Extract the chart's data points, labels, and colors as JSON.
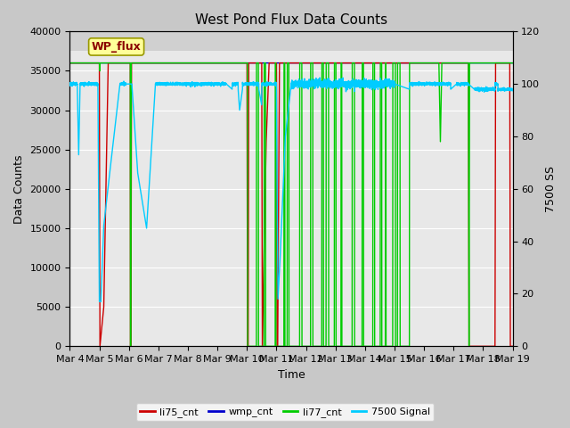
{
  "title": "West Pond Flux Data Counts",
  "xlabel": "Time",
  "ylabel_left": "Data Counts",
  "ylabel_right": "7500 SS",
  "ylim_left": [
    0,
    40000
  ],
  "ylim_right": [
    0,
    120
  ],
  "watermark_text": "WP_flux",
  "watermark_color": "#8B0000",
  "watermark_bg": "#FFFF99",
  "watermark_border": "#999900",
  "fig_facecolor": "#c8c8c8",
  "plot_bg_upper": "#dcdcdc",
  "plot_bg_lower": "#e8e8e8",
  "series_li75_color": "#cc0000",
  "series_wmp_color": "#0000cc",
  "series_li77_color": "#00cc00",
  "series_7500_color": "#00ccff",
  "series_lw": 1.0,
  "series_7500_lw": 1.0,
  "grid_color": "#ffffff",
  "title_fontsize": 11,
  "axis_fontsize": 9,
  "tick_fontsize": 8,
  "legend_fontsize": 8,
  "x_tick_labels": [
    "Mar 4",
    "Mar 5",
    "Mar 6",
    "Mar 7",
    "Mar 8",
    "Mar 9",
    "Mar 10",
    "Mar 11",
    "Mar 12",
    "Mar 13",
    "Mar 14",
    "Mar 15",
    "Mar 16",
    "Mar 17",
    "Mar 18",
    "Mar 19"
  ],
  "x_tick_positions": [
    0,
    1,
    2,
    3,
    4,
    5,
    6,
    7,
    8,
    9,
    10,
    11,
    12,
    13,
    14,
    15
  ],
  "legend_labels": [
    "li75_cnt",
    "wmp_cnt",
    "li77_cnt",
    "7500 Signal"
  ],
  "legend_colors": [
    "#cc0000",
    "#0000cc",
    "#00cc00",
    "#00ccff"
  ]
}
